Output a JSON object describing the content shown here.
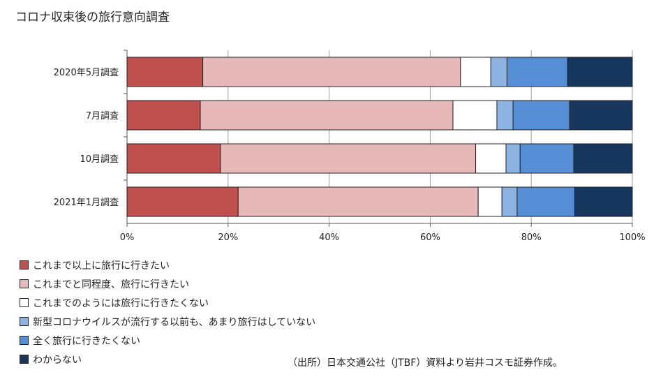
{
  "title": "コロナ収束後の旅行意向調査",
  "chart_data": {
    "type": "bar",
    "orientation": "horizontal",
    "stacked": true,
    "categories": [
      "2020年5月調査",
      "7月調査",
      "10月調査",
      "2021年1月調査"
    ],
    "series": [
      {
        "name": "これまで以上に旅行に行きたい",
        "color": "#c0504d",
        "values": [
          15.0,
          14.5,
          18.5,
          22.0
        ]
      },
      {
        "name": "これまでと同程度、旅行に行きたい",
        "color": "#e6b9b8",
        "values": [
          51.0,
          50.0,
          50.5,
          47.5
        ]
      },
      {
        "name": "これまでのようには旅行に行きたくない",
        "color": "#ffffff",
        "values": [
          6.0,
          8.7,
          6.0,
          4.7
        ]
      },
      {
        "name": "新型コロナウイルスが流行する以前も、あまり旅行はしていない",
        "color": "#8db3e2",
        "values": [
          3.2,
          3.2,
          2.8,
          3.0
        ]
      },
      {
        "name": "全く旅行に行きたくない",
        "color": "#558ed5",
        "values": [
          12.0,
          11.2,
          10.6,
          11.4
        ]
      },
      {
        "name": "わからない",
        "color": "#17375e",
        "values": [
          12.8,
          12.4,
          11.6,
          11.4
        ]
      }
    ],
    "xticks": [
      "0%",
      "20%",
      "40%",
      "60%",
      "80%",
      "100%"
    ],
    "xlim": [
      0,
      100
    ],
    "grid": true,
    "legend_position": "bottom-left"
  },
  "source": "（出所）日本交通公社（JTBF）資料より岩井コスモ証券作成。"
}
